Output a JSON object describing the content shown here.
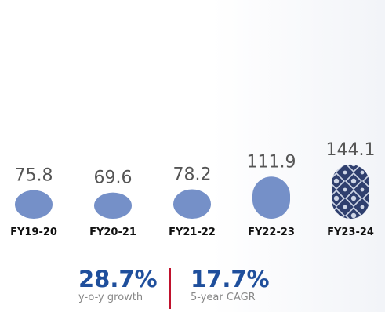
{
  "chart_data": {
    "type": "bar",
    "categories": [
      "FY19-20",
      "FY20-21",
      "FY21-22",
      "FY22-23",
      "FY23-24"
    ],
    "values": [
      75.8,
      69.6,
      78.2,
      111.9,
      144.1
    ],
    "value_labels": [
      "75.8",
      "69.6",
      "78.2",
      "111.9",
      "144.1"
    ],
    "highlight_index": 4,
    "title": "",
    "xlabel": "",
    "ylabel": "",
    "grid": false,
    "legend": "none"
  },
  "colors": {
    "bar": "#7590c8",
    "highlight_base": "#2f3f6e",
    "highlight_pattern": "#cfd6e6",
    "accent_blue": "#1f4f9c",
    "divider": "#c0122d"
  },
  "stats": [
    {
      "value": "28.7%",
      "caption": "y-o-y growth"
    },
    {
      "value": "17.7%",
      "caption": "5-year CAGR"
    }
  ]
}
